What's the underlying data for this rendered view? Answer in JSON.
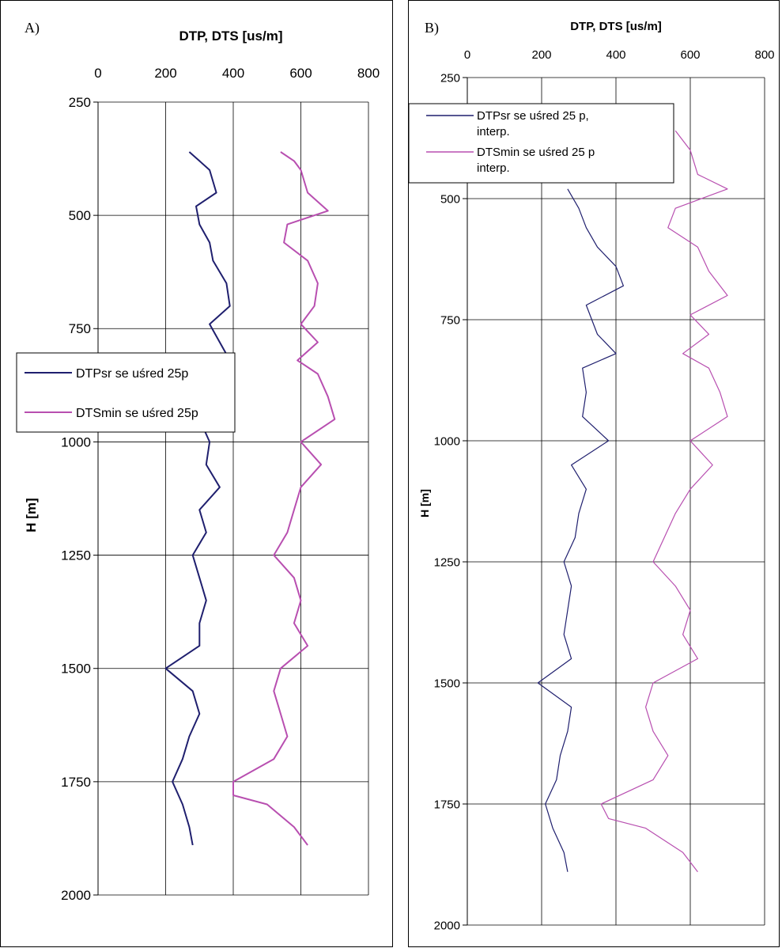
{
  "chart_data": [
    {
      "panel": "A)",
      "type": "line",
      "title": "DTP, DTS [us/m]",
      "xlabel": "DTP, DTS [us/m]",
      "ylabel": "H [m]",
      "xlim": [
        0,
        800
      ],
      "ylim": [
        250,
        2000
      ],
      "y_inverted": true,
      "x_ticks": [
        "0",
        "200",
        "400",
        "600",
        "800"
      ],
      "y_ticks": [
        "250",
        "500",
        "750",
        "1000",
        "1250",
        "1500",
        "1750",
        "2000"
      ],
      "grid": "major",
      "legend_position": "middle-left",
      "series": [
        {
          "name": "DTPsr se uśred 25p",
          "color": "#1f1f6e",
          "points": [
            [
              270,
              360
            ],
            [
              300,
              380
            ],
            [
              330,
              400
            ],
            [
              350,
              450
            ],
            [
              290,
              480
            ],
            [
              300,
              520
            ],
            [
              330,
              560
            ],
            [
              340,
              600
            ],
            [
              380,
              650
            ],
            [
              390,
              700
            ],
            [
              330,
              740
            ],
            [
              360,
              780
            ],
            [
              390,
              820
            ],
            [
              300,
              850
            ],
            [
              310,
              900
            ],
            [
              300,
              950
            ],
            [
              330,
              1000
            ],
            [
              320,
              1050
            ],
            [
              360,
              1100
            ],
            [
              300,
              1150
            ],
            [
              320,
              1200
            ],
            [
              280,
              1250
            ],
            [
              300,
              1300
            ],
            [
              320,
              1350
            ],
            [
              300,
              1400
            ],
            [
              300,
              1450
            ],
            [
              200,
              1500
            ],
            [
              280,
              1550
            ],
            [
              300,
              1600
            ],
            [
              270,
              1650
            ],
            [
              250,
              1700
            ],
            [
              220,
              1750
            ],
            [
              250,
              1800
            ],
            [
              270,
              1850
            ],
            [
              280,
              1890
            ]
          ]
        },
        {
          "name": "DTSmin se uśred 25p",
          "color": "#b84fb0",
          "points": [
            [
              540,
              360
            ],
            [
              580,
              380
            ],
            [
              600,
              400
            ],
            [
              620,
              450
            ],
            [
              680,
              490
            ],
            [
              560,
              520
            ],
            [
              550,
              560
            ],
            [
              620,
              600
            ],
            [
              650,
              650
            ],
            [
              640,
              700
            ],
            [
              600,
              740
            ],
            [
              650,
              780
            ],
            [
              590,
              820
            ],
            [
              650,
              850
            ],
            [
              680,
              900
            ],
            [
              700,
              950
            ],
            [
              600,
              1000
            ],
            [
              660,
              1050
            ],
            [
              600,
              1100
            ],
            [
              580,
              1150
            ],
            [
              560,
              1200
            ],
            [
              520,
              1250
            ],
            [
              580,
              1300
            ],
            [
              600,
              1350
            ],
            [
              580,
              1400
            ],
            [
              620,
              1450
            ],
            [
              540,
              1500
            ],
            [
              520,
              1550
            ],
            [
              540,
              1600
            ],
            [
              560,
              1650
            ],
            [
              520,
              1700
            ],
            [
              400,
              1750
            ],
            [
              400,
              1780
            ],
            [
              500,
              1800
            ],
            [
              580,
              1850
            ],
            [
              620,
              1890
            ]
          ]
        }
      ]
    },
    {
      "panel": "B)",
      "type": "line",
      "title": "DTP, DTS [us/m]",
      "xlabel": "DTP, DTS [us/m]",
      "ylabel": "H [m]",
      "xlim": [
        0,
        800
      ],
      "ylim": [
        250,
        2000
      ],
      "y_inverted": true,
      "x_ticks": [
        "0",
        "200",
        "400",
        "600",
        "800"
      ],
      "y_ticks": [
        "250",
        "500",
        "750",
        "1000",
        "1250",
        "1500",
        "1750",
        "2000"
      ],
      "grid": "major",
      "legend_position": "top-left",
      "series": [
        {
          "name": "DTPsr se uśred 25 p, interp.",
          "color": "#1f1f6e",
          "points": [
            [
              270,
              480
            ],
            [
              300,
              520
            ],
            [
              320,
              560
            ],
            [
              350,
              600
            ],
            [
              400,
              640
            ],
            [
              420,
              680
            ],
            [
              320,
              720
            ],
            [
              350,
              780
            ],
            [
              400,
              820
            ],
            [
              310,
              850
            ],
            [
              320,
              900
            ],
            [
              310,
              950
            ],
            [
              380,
              1000
            ],
            [
              280,
              1050
            ],
            [
              320,
              1100
            ],
            [
              300,
              1150
            ],
            [
              290,
              1200
            ],
            [
              260,
              1250
            ],
            [
              280,
              1300
            ],
            [
              270,
              1350
            ],
            [
              260,
              1400
            ],
            [
              280,
              1450
            ],
            [
              190,
              1500
            ],
            [
              280,
              1550
            ],
            [
              270,
              1600
            ],
            [
              250,
              1650
            ],
            [
              240,
              1700
            ],
            [
              210,
              1750
            ],
            [
              230,
              1800
            ],
            [
              260,
              1850
            ],
            [
              270,
              1890
            ]
          ]
        },
        {
          "name": "DTSmin se uśred 25 p interp.",
          "color": "#b84fb0",
          "points": [
            [
              560,
              360
            ],
            [
              600,
              400
            ],
            [
              620,
              450
            ],
            [
              700,
              480
            ],
            [
              560,
              520
            ],
            [
              540,
              560
            ],
            [
              620,
              600
            ],
            [
              650,
              650
            ],
            [
              700,
              700
            ],
            [
              600,
              740
            ],
            [
              650,
              780
            ],
            [
              580,
              820
            ],
            [
              650,
              850
            ],
            [
              680,
              900
            ],
            [
              700,
              950
            ],
            [
              600,
              1000
            ],
            [
              660,
              1050
            ],
            [
              600,
              1100
            ],
            [
              560,
              1150
            ],
            [
              530,
              1200
            ],
            [
              500,
              1250
            ],
            [
              560,
              1300
            ],
            [
              600,
              1350
            ],
            [
              580,
              1400
            ],
            [
              620,
              1450
            ],
            [
              500,
              1500
            ],
            [
              480,
              1550
            ],
            [
              500,
              1600
            ],
            [
              540,
              1650
            ],
            [
              500,
              1700
            ],
            [
              360,
              1750
            ],
            [
              380,
              1780
            ],
            [
              480,
              1800
            ],
            [
              580,
              1850
            ],
            [
              620,
              1890
            ]
          ]
        }
      ]
    }
  ]
}
